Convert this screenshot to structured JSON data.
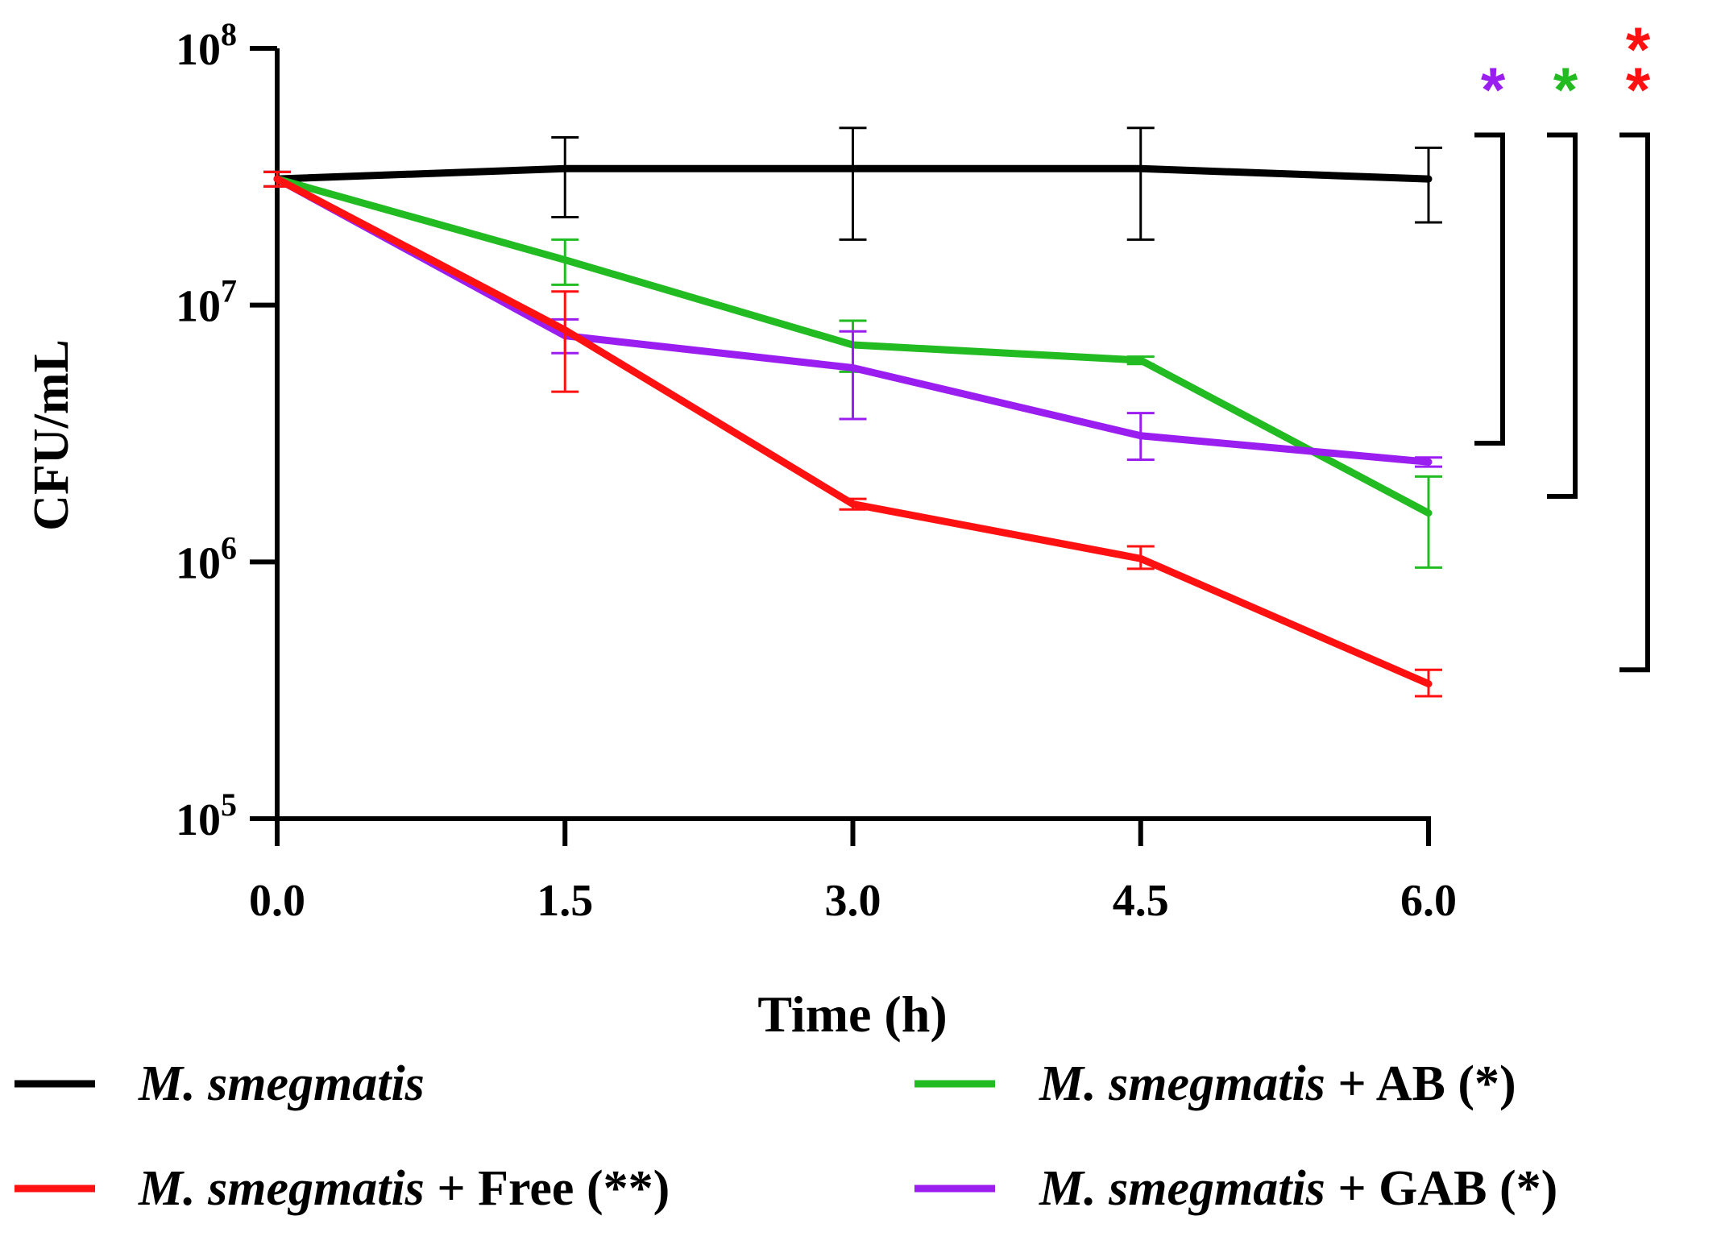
{
  "chart_data": {
    "type": "line",
    "title": "",
    "xlabel": "Time (h)",
    "ylabel": "CFU/mL",
    "yscale": "log",
    "ylim": [
      100000,
      100000000
    ],
    "xlim": [
      0,
      6
    ],
    "x": [
      0,
      1.5,
      3,
      4.5,
      6
    ],
    "x_tick_labels": [
      "0.0",
      "1.5",
      "3.0",
      "4.5",
      "6.0"
    ],
    "y_ticks": [
      {
        "base": "10",
        "exp": "5",
        "value": 100000
      },
      {
        "base": "10",
        "exp": "6",
        "value": 1000000
      },
      {
        "base": "10",
        "exp": "7",
        "value": 10000000
      },
      {
        "base": "10",
        "exp": "8",
        "value": 100000000
      }
    ],
    "series": [
      {
        "key": "control",
        "color": "#000000",
        "values": [
          31000000,
          34000000,
          34000000,
          34000000,
          31000000
        ],
        "err_low": [
          29000000,
          22000000,
          18000000,
          18000000,
          21000000
        ],
        "err_high": [
          33000000,
          45000000,
          49000000,
          49000000,
          41000000
        ]
      },
      {
        "key": "ab",
        "color": "#22bb22",
        "values": [
          31000000,
          15000000,
          7000000,
          6100000,
          1550000
        ],
        "err_low": [
          29000000,
          12000000,
          5500000,
          5900000,
          950000
        ],
        "err_high": [
          33000000,
          18000000,
          8700000,
          6300000,
          2150000
        ]
      },
      {
        "key": "gab",
        "color": "#9a1ef0",
        "values": [
          31000000,
          7600000,
          5700000,
          3100000,
          2450000
        ],
        "err_low": [
          29000000,
          6500000,
          3600000,
          2500000,
          2350000
        ],
        "err_high": [
          33000000,
          8800000,
          7900000,
          3800000,
          2550000
        ]
      },
      {
        "key": "free",
        "color": "#ff1111",
        "values": [
          31000000,
          8000000,
          1680000,
          1030000,
          335000
        ],
        "err_low": [
          29000000,
          4600000,
          1600000,
          940000,
          300000
        ],
        "err_high": [
          33000000,
          11300000,
          1760000,
          1150000,
          380000
        ]
      }
    ],
    "legend": [
      {
        "key": "control",
        "color": "#000000",
        "italic": "M. smegmatis",
        "suffix": ""
      },
      {
        "key": "ab",
        "color": "#22bb22",
        "italic": "M. smegmatis",
        "suffix": " + AB (*)"
      },
      {
        "key": "free",
        "color": "#ff1111",
        "italic": "M. smegmatis",
        "suffix": " + Free (**)"
      },
      {
        "key": "gab",
        "color": "#9a1ef0",
        "italic": "M. smegmatis",
        "suffix": " + GAB (*)"
      }
    ],
    "significance": [
      {
        "vs": "gab",
        "label": "*",
        "color": "#9a1ef0",
        "bracket_low": 2900000,
        "bracket_high": 46000000
      },
      {
        "vs": "ab",
        "label": "*",
        "color": "#22bb22",
        "bracket_low": 1800000,
        "bracket_high": 46000000
      },
      {
        "vs": "free",
        "label": "**",
        "color": "#ff1111",
        "bracket_low": 380000,
        "bracket_high": 46000000
      }
    ]
  }
}
